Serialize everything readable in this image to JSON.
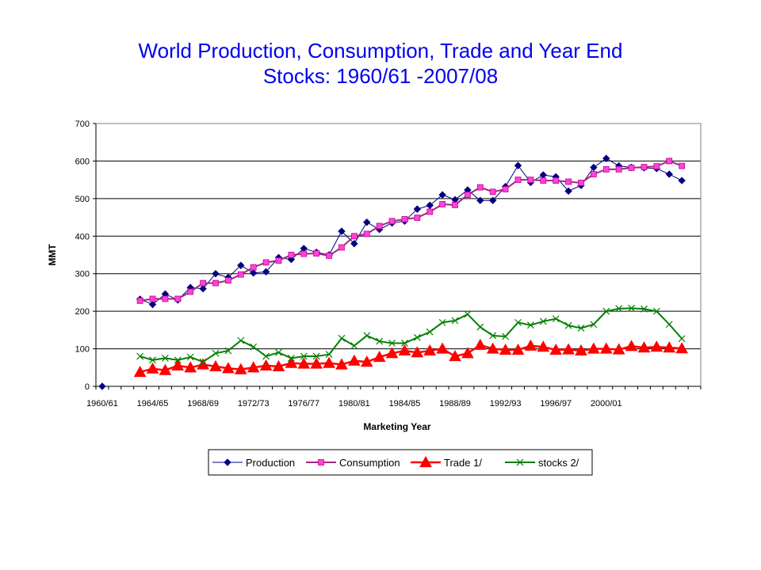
{
  "chart_data": {
    "type": "line",
    "title_line1": "World Production, Consumption, Trade and Year End",
    "title_line2": "Stocks: 1960/61 -2007/08",
    "xlabel": "Marketing Year",
    "ylabel": "MMT",
    "ylim": [
      0,
      700
    ],
    "yticks": [
      0,
      100,
      200,
      300,
      400,
      500,
      600,
      700
    ],
    "x_tick_labels": [
      "1960/61",
      "1964/65",
      "1968/69",
      "1972/73",
      "1976/77",
      "1980/81",
      "1984/85",
      "1988/89",
      "1992/93",
      "1996/97",
      "2000/01"
    ],
    "x_tick_every": 4,
    "categories": [
      "1960/61",
      "1961/62",
      "1962/63",
      "1963/64",
      "1964/65",
      "1965/66",
      "1966/67",
      "1967/68",
      "1968/69",
      "1969/70",
      "1970/71",
      "1971/72",
      "1972/73",
      "1973/74",
      "1974/75",
      "1975/76",
      "1976/77",
      "1977/78",
      "1978/79",
      "1979/80",
      "1980/81",
      "1981/82",
      "1982/83",
      "1983/84",
      "1984/85",
      "1985/86",
      "1986/87",
      "1987/88",
      "1988/89",
      "1989/90",
      "1990/91",
      "1991/92",
      "1992/93",
      "1993/94",
      "1994/95",
      "1995/96",
      "1996/97",
      "1997/98",
      "1998/99",
      "1999/00",
      "2000/01",
      "2001/02",
      "2002/03",
      "2003/04",
      "2004/05",
      "2005/06",
      "2006/07",
      "2007/08"
    ],
    "grid": true,
    "legend_position": "bottom",
    "series": [
      {
        "name": "Production",
        "color": "#000080",
        "marker": "diamond",
        "values": [
          0,
          null,
          null,
          232,
          218,
          246,
          230,
          263,
          260,
          300,
          290,
          322,
          302,
          305,
          343,
          338,
          367,
          357,
          350,
          413,
          380,
          437,
          418,
          435,
          440,
          472,
          482,
          510,
          497,
          523,
          495,
          495,
          532,
          588,
          543,
          563,
          558,
          520,
          535,
          583,
          607,
          587,
          583,
          582,
          580,
          565,
          548,
          null
        ]
      },
      {
        "name": "Consumption",
        "color": "#9e2a7a",
        "marker": "square",
        "values": [
          null,
          null,
          null,
          228,
          233,
          233,
          233,
          252,
          275,
          275,
          282,
          298,
          317,
          330,
          335,
          350,
          353,
          354,
          348,
          370,
          400,
          406,
          427,
          440,
          445,
          449,
          465,
          485,
          483,
          510,
          530,
          518,
          525,
          550,
          550,
          548,
          548,
          545,
          542,
          565,
          578,
          578,
          582,
          584,
          586,
          600,
          587,
          null
        ]
      },
      {
        "name": "Trade  1/",
        "color": "#ff0000",
        "marker": "triangle",
        "values": [
          null,
          null,
          null,
          38,
          47,
          43,
          55,
          50,
          58,
          53,
          48,
          45,
          50,
          55,
          53,
          62,
          60,
          60,
          62,
          58,
          68,
          65,
          78,
          88,
          95,
          90,
          95,
          100,
          80,
          88,
          110,
          100,
          97,
          97,
          108,
          105,
          97,
          98,
          95,
          100,
          100,
          98,
          107,
          103,
          105,
          103,
          101,
          null
        ]
      },
      {
        "name": "stocks 2/",
        "color": "#008000",
        "marker": "x",
        "values": [
          null,
          null,
          null,
          80,
          70,
          75,
          70,
          78,
          65,
          88,
          95,
          122,
          105,
          80,
          90,
          75,
          80,
          80,
          85,
          128,
          108,
          135,
          120,
          115,
          115,
          130,
          145,
          170,
          175,
          192,
          158,
          135,
          133,
          170,
          163,
          173,
          180,
          162,
          155,
          165,
          200,
          207,
          208,
          206,
          200,
          165,
          127,
          null
        ]
      }
    ]
  }
}
